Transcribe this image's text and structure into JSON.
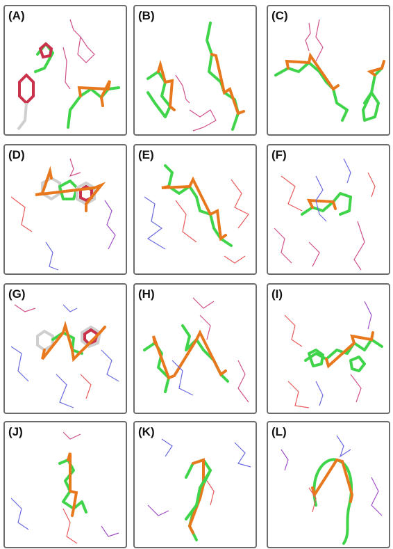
{
  "panels": [
    {
      "label": "(A)"
    },
    {
      "label": "(B)"
    },
    {
      "label": "(C)"
    },
    {
      "label": "(D)"
    },
    {
      "label": "(E)"
    },
    {
      "label": "(F)"
    },
    {
      "label": "(G)"
    },
    {
      "label": "(H)"
    },
    {
      "label": "(I)"
    },
    {
      "label": "(J)"
    },
    {
      "label": "(K)"
    },
    {
      "label": "(L)"
    }
  ]
}
